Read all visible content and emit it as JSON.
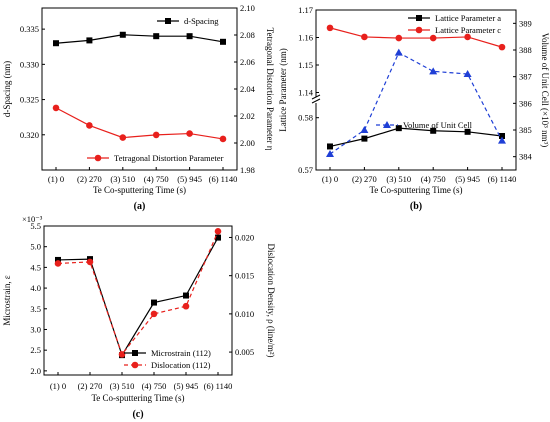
{
  "chart_data": [
    {
      "id": "a",
      "type": "line",
      "panel_label": "(a)",
      "xlabel": "Te Co-sputtering Time (s)",
      "categories": [
        "(1) 0",
        "(2) 270",
        "(3) 510",
        "(4) 750",
        "(5) 945",
        "(6) 1140"
      ],
      "left_axis": {
        "label": "d-Spacing (nm)",
        "range": [
          0.315,
          0.338
        ],
        "ticks": [
          "0.320",
          "0.325",
          "0.330",
          "0.335"
        ]
      },
      "right_axis": {
        "label": "Tetragonal Distortion Parameter η",
        "range": [
          1.98,
          2.1
        ],
        "ticks": [
          "1.98",
          "2.00",
          "2.02",
          "2.04",
          "2.06",
          "2.08",
          "2.10"
        ]
      },
      "series": [
        {
          "name": "d-Spacing",
          "axis": "left",
          "values": [
            0.333,
            0.3334,
            0.3342,
            0.334,
            0.334,
            0.3332
          ],
          "color": "#000000",
          "marker": "square",
          "dash": false
        },
        {
          "name": "Tetragonal Distortion Parameter",
          "axis": "right",
          "values": [
            2.026,
            2.013,
            2.004,
            2.006,
            2.007,
            2.003
          ],
          "color": "#e8201c",
          "marker": "circle",
          "dash": false
        }
      ]
    },
    {
      "id": "b",
      "type": "line",
      "panel_label": "(b)",
      "xlabel": "Te Co-sputtering Time (s)",
      "categories": [
        "(1) 0",
        "(2) 270",
        "(3) 510",
        "(4) 750",
        "(5) 945",
        "(6) 1140"
      ],
      "left_axis": {
        "label": "Lattice Parameter (nm)",
        "broken": true,
        "upper_range": [
          1.138,
          1.17
        ],
        "lower_range": [
          0.57,
          0.583
        ],
        "ticks_upper": [
          "1.14",
          "1.15",
          "1.16",
          "1.17"
        ],
        "ticks_lower": [
          "0.57",
          "0.58"
        ]
      },
      "right_axis": {
        "label": "Volume of Unit Cell (×10³ nm³)",
        "range": [
          383.5,
          389.5
        ],
        "ticks": [
          "384",
          "385",
          "386",
          "387",
          "388",
          "389"
        ]
      },
      "series": [
        {
          "name": "Lattice Parameter a",
          "axis": "left",
          "values": [
            0.5745,
            0.576,
            0.578,
            0.5775,
            0.5773,
            0.5765
          ],
          "color": "#000000",
          "marker": "square",
          "dash": false
        },
        {
          "name": "Lattice Parameter c",
          "axis": "left",
          "values": [
            1.1635,
            1.1602,
            1.1598,
            1.1598,
            1.1602,
            1.1565
          ],
          "color": "#e8201c",
          "marker": "circle",
          "dash": false
        },
        {
          "name": "Volume of Unit Cell",
          "axis": "right",
          "values": [
            384.1,
            385.0,
            387.9,
            387.2,
            387.1,
            384.6
          ],
          "color": "#1f3fd6",
          "marker": "triangle",
          "dash": true
        }
      ]
    },
    {
      "id": "c",
      "type": "line",
      "panel_label": "(c)",
      "xlabel": "Te Co-sputtering Time (s)",
      "categories": [
        "(1) 0",
        "(2) 270",
        "(3) 510",
        "(4) 750",
        "(5) 945",
        "(6) 1140"
      ],
      "left_axis": {
        "label": "Microstrain, ε",
        "exponent": "×10⁻³",
        "range": [
          1.9,
          5.5
        ],
        "ticks": [
          "2.0",
          "2.5",
          "3.0",
          "3.5",
          "4.0",
          "4.5",
          "5.0",
          "5.5"
        ]
      },
      "right_axis": {
        "label": "Dislocation Density, ρ (line/m²)",
        "range": [
          0.002,
          0.0215
        ],
        "ticks": [
          "0.005",
          "0.010",
          "0.015",
          "0.020"
        ]
      },
      "series": [
        {
          "name": "Microstrain (112)",
          "axis": "left",
          "values": [
            4.68,
            4.7,
            2.38,
            3.65,
            3.82,
            5.22
          ],
          "color": "#000000",
          "marker": "square",
          "dash": false
        },
        {
          "name": "Dislocation (112)",
          "axis": "right",
          "values": [
            0.0166,
            0.0168,
            0.0047,
            0.01,
            0.011,
            0.0208
          ],
          "color": "#e8201c",
          "marker": "circle",
          "dash": true
        }
      ]
    }
  ]
}
